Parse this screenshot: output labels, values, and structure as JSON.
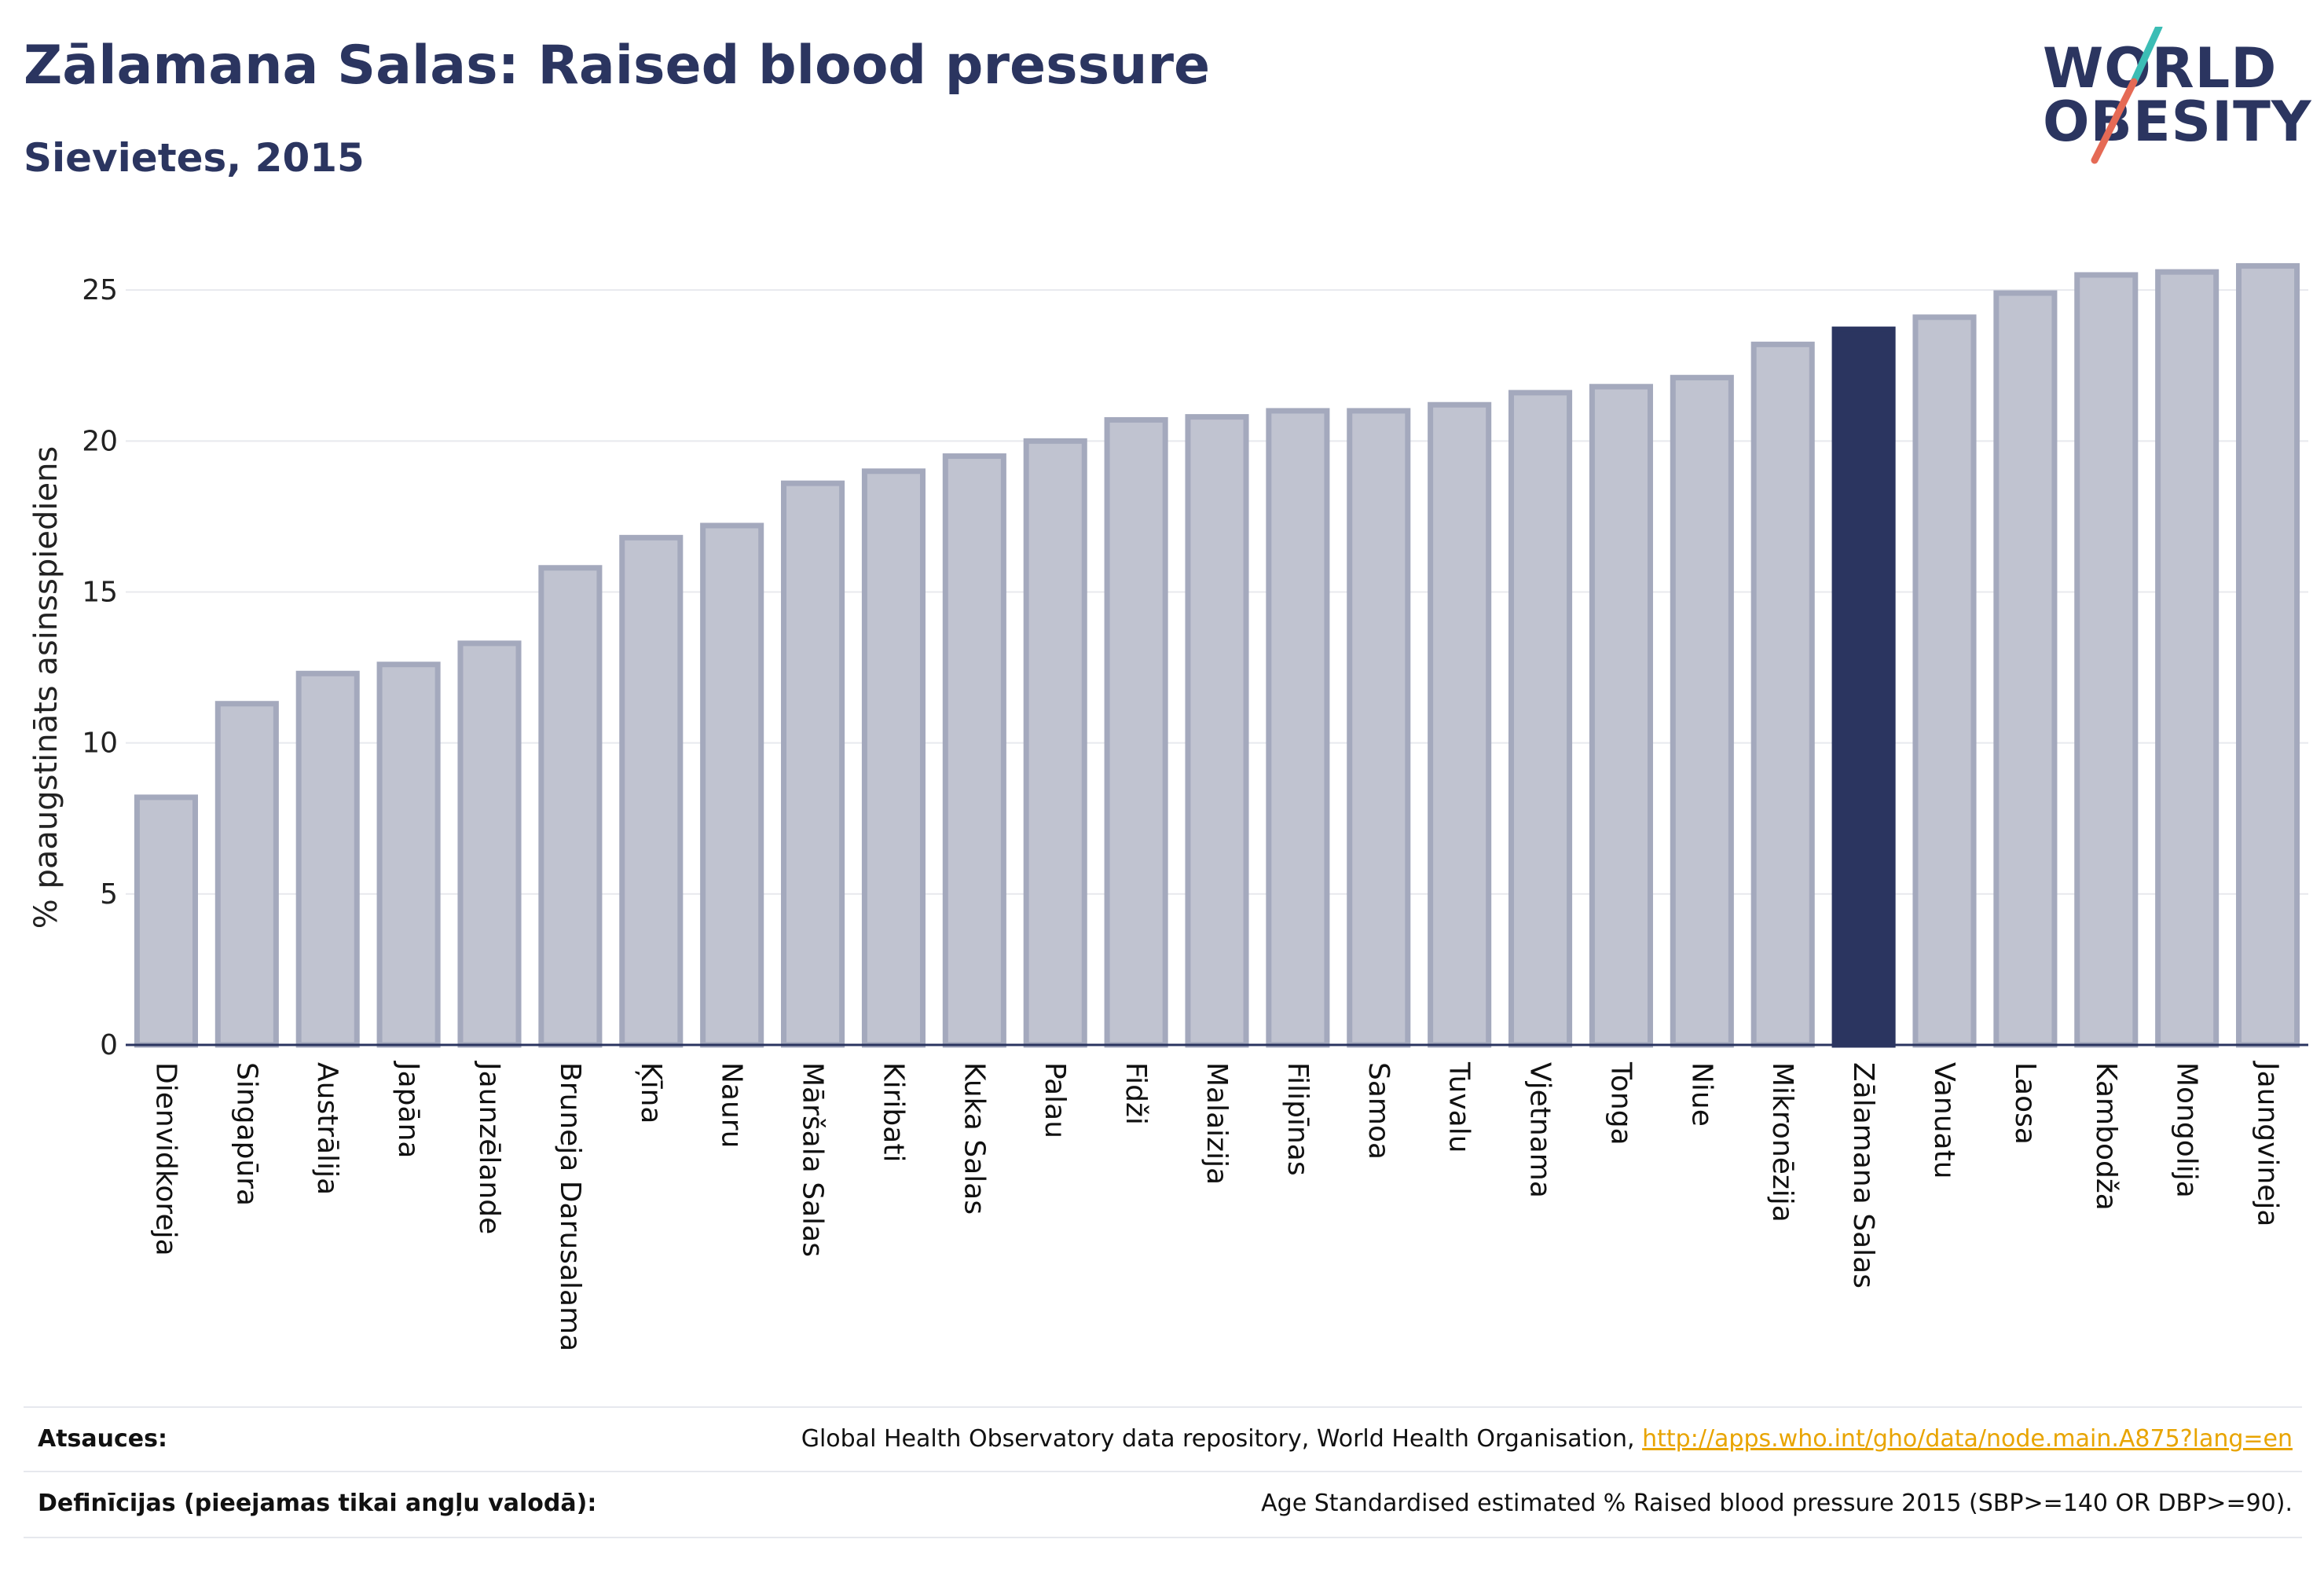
{
  "header": {
    "title": "Zālamana Salas: Raised blood pressure",
    "subtitle": "Sievietes, 2015"
  },
  "logo": {
    "line1": "WORLD",
    "line2": "OBESITY"
  },
  "chart_data": {
    "type": "bar",
    "ylabel": "% paaugstināts asinsspiediens",
    "ylim": [
      0,
      26.8
    ],
    "yticks": [
      0,
      5,
      10,
      15,
      20,
      25
    ],
    "grid": true,
    "categories": [
      "Dienvidkoreja",
      "Singapūra",
      "Austrālija",
      "Japāna",
      "Jaunzēlande",
      "Bruneja Darusalama",
      "Ķīna",
      "Nauru",
      "Māršala Salas",
      "Kiribati",
      "Kuka Salas",
      "Palau",
      "Fidži",
      "Malaizija",
      "Filipīnas",
      "Samoa",
      "Tuvalu",
      "Vjetnama",
      "Tonga",
      "Niue",
      "Mikronēzija",
      "Zālamana Salas",
      "Vanuatu",
      "Laosa",
      "Kambodža",
      "Mongolija",
      "Jaungvineja"
    ],
    "values": [
      8.2,
      11.3,
      12.3,
      12.6,
      13.3,
      15.8,
      16.8,
      17.2,
      18.6,
      19.0,
      19.5,
      20.0,
      20.7,
      20.8,
      21.0,
      21.0,
      21.2,
      21.6,
      21.8,
      22.1,
      23.2,
      23.7,
      24.1,
      24.9,
      25.5,
      25.6,
      25.8
    ],
    "highlight": "Zālamana Salas",
    "colors": {
      "bar": "#c0c3d0",
      "bar_edge": "#a4a9bd",
      "highlight": "#2b3560",
      "axis": "#2b3560",
      "grid": "#e8e9ee"
    }
  },
  "footer": {
    "sources_label": "Atsauces:",
    "sources_text": "Global Health Observatory data repository, World Health Organisation,",
    "sources_link": "http://apps.who.int/gho/data/node.main.A875?lang=en",
    "definitions_label": "Definīcijas (pieejamas tikai angļu valodā):",
    "definitions_text": "Age Standardised estimated % Raised blood pressure 2015 (SBP>=140 OR DBP>=90)."
  }
}
